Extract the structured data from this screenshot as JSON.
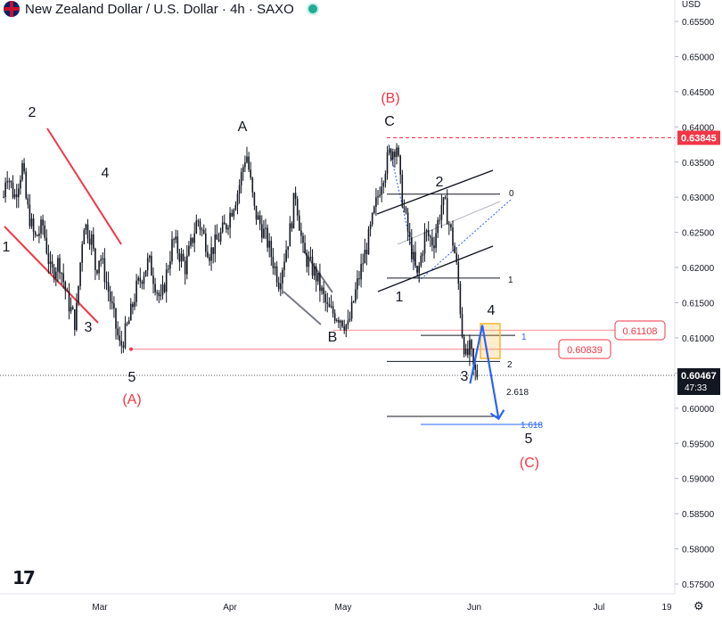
{
  "header": {
    "title": "New Zealand Dollar / U.S. Dollar · 4h · SAXO",
    "currency": "USD",
    "status_color": "#22ab94"
  },
  "colors": {
    "red": "#f23645",
    "blue": "#2962ff",
    "candle": "#131722",
    "accent_orange": "#f7b731"
  },
  "chart_data": {
    "type": "candlestick",
    "symbol": "NZDUSD",
    "interval": "4h",
    "y_axis": {
      "min": 0.5725,
      "max": 0.6575,
      "ticks": [
        "0.65500",
        "0.65000",
        "0.64500",
        "0.64000",
        "0.63500",
        "0.63000",
        "0.62500",
        "0.62000",
        "0.61500",
        "0.61000",
        "0.60500",
        "0.60000",
        "0.59500",
        "0.59000",
        "0.58500",
        "0.58000",
        "0.57500"
      ]
    },
    "x_axis": {
      "labels": [
        "Mar",
        "Apr",
        "May",
        "Jun",
        "Jul",
        "19"
      ]
    },
    "price_path": [
      [
        "Feb 1",
        0.627
      ],
      [
        "Feb 3",
        0.632
      ],
      [
        "Feb 5",
        0.628
      ],
      [
        "Feb 6",
        0.634
      ],
      [
        "Feb 8",
        0.63
      ],
      [
        "Feb 10",
        0.6345
      ],
      [
        "Feb 11",
        0.629
      ],
      [
        "Feb 13",
        0.624
      ],
      [
        "Feb 15",
        0.626
      ],
      [
        "Feb 17",
        0.619
      ],
      [
        "Feb 19",
        0.621
      ],
      [
        "Feb 21",
        0.6155
      ],
      [
        "Feb 23",
        0.612
      ],
      [
        "Feb 25",
        0.6265
      ],
      [
        "Feb 27",
        0.624
      ],
      [
        "Feb 28",
        0.6195
      ],
      [
        "Mar 1",
        0.622
      ],
      [
        "Mar 3",
        0.617
      ],
      [
        "Mar 6",
        0.6085
      ],
      [
        "Mar 8",
        0.612
      ],
      [
        "Mar 10",
        0.617
      ],
      [
        "Mar 13",
        0.621
      ],
      [
        "Mar 16",
        0.615
      ],
      [
        "Mar 19",
        0.624
      ],
      [
        "Mar 22",
        0.62
      ],
      [
        "Mar 25",
        0.627
      ],
      [
        "Mar 28",
        0.622
      ],
      [
        "Apr 1",
        0.626
      ],
      [
        "Apr 4",
        0.631
      ],
      [
        "Apr 6",
        0.6365
      ],
      [
        "Apr 8",
        0.628
      ],
      [
        "Apr 11",
        0.624
      ],
      [
        "Apr 14",
        0.618
      ],
      [
        "Apr 17",
        0.626
      ],
      [
        "Apr 18",
        0.631
      ],
      [
        "Apr 20",
        0.622
      ],
      [
        "Apr 23",
        0.619
      ],
      [
        "Apr 26",
        0.614
      ],
      [
        "Apr 29",
        0.613
      ],
      [
        "May 1",
        0.6115
      ],
      [
        "May 3",
        0.617
      ],
      [
        "May 6",
        0.624
      ],
      [
        "May 9",
        0.632
      ],
      [
        "May 11",
        0.636
      ],
      [
        "May 13",
        0.6375
      ],
      [
        "May 14",
        0.631
      ],
      [
        "May 16",
        0.624
      ],
      [
        "May 18",
        0.6185
      ],
      [
        "May 20",
        0.625
      ],
      [
        "May 22",
        0.6235
      ],
      [
        "May 24",
        0.629
      ],
      [
        "May 25",
        0.6285
      ],
      [
        "May 27",
        0.623
      ],
      [
        "May 28",
        0.6185
      ],
      [
        "May 29",
        0.611
      ],
      [
        "May 30",
        0.607
      ],
      [
        "May 31",
        0.6085
      ],
      [
        "Jun 1",
        0.605
      ],
      [
        "Jun 2",
        0.6047
      ]
    ],
    "projection": [
      [
        "May 31",
        0.6035
      ],
      [
        "Jun 3",
        0.6118
      ],
      [
        "Jun 7",
        0.5985
      ]
    ],
    "price_labels": [
      {
        "value": "0.63845",
        "style": "red-fill"
      },
      {
        "value": "0.60467",
        "sub": "47:33",
        "style": "dark-fill"
      }
    ],
    "level_labels": [
      {
        "value": "0.61108"
      },
      {
        "value": "0.60839"
      }
    ],
    "fib_labels": [
      "0",
      "1",
      "1",
      "2",
      "2.618",
      "1.618"
    ],
    "wave_labels": [
      "1",
      "2",
      "3",
      "4",
      "5",
      "(A)",
      "A",
      "B",
      "C",
      "(B)",
      "1",
      "2",
      "3",
      "4",
      "5",
      "(C)"
    ]
  }
}
